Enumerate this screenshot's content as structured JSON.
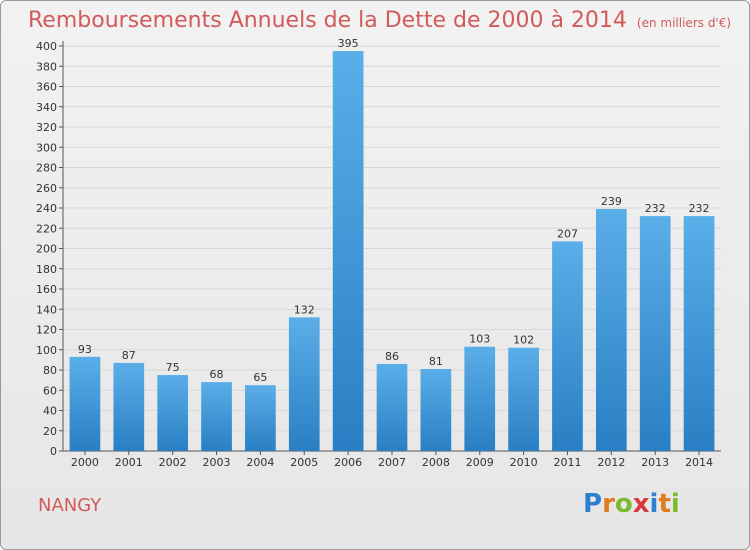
{
  "title": "Remboursements Annuels de la Dette de 2000 à 2014",
  "subtitle": "(en milliers d'€)",
  "place": "NANGY",
  "logo": {
    "text": "Proxiti",
    "letters": [
      {
        "ch": "P",
        "color": "#2f7fd0"
      },
      {
        "ch": "r",
        "color": "#e07b1f"
      },
      {
        "ch": "o",
        "color": "#7dbb2e"
      },
      {
        "ch": "x",
        "color": "#d93a3a"
      },
      {
        "ch": "i",
        "color": "#2f7fd0"
      },
      {
        "ch": "t",
        "color": "#e07b1f"
      },
      {
        "ch": "i",
        "color": "#7dbb2e"
      }
    ]
  },
  "colors": {
    "bar_top": "#5aaee8",
    "bar_bottom": "#2a7fc4",
    "title": "#d25a5a"
  },
  "chart_data": {
    "type": "bar",
    "categories": [
      "2000",
      "2001",
      "2002",
      "2003",
      "2004",
      "2005",
      "2006",
      "2007",
      "2008",
      "2009",
      "2010",
      "2011",
      "2012",
      "2013",
      "2014"
    ],
    "values": [
      93,
      87,
      75,
      68,
      65,
      132,
      395,
      86,
      81,
      103,
      102,
      207,
      239,
      232,
      232
    ],
    "ylim": [
      0,
      400
    ],
    "yticks": [
      0,
      20,
      40,
      60,
      80,
      100,
      120,
      140,
      160,
      180,
      200,
      220,
      240,
      260,
      280,
      300,
      320,
      340,
      360,
      380,
      400
    ],
    "grid": true
  }
}
